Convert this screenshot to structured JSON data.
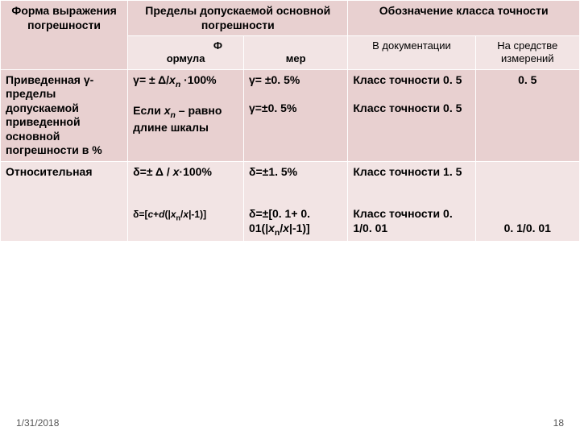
{
  "header": {
    "c1": "Форма выражения погрешности",
    "c2_top": "Пределы допускаемой основной погрешности",
    "c2_a_prefix": "Ф",
    "c2_a": "ормула",
    "c2_b": "мер",
    "c3_top": "Обозначение класса точности",
    "c3_a": "В документации",
    "c3_b": "На средстве измерений"
  },
  "rows": [
    {
      "c1": "Приведенная γ- пределы допускаемой приведенной основной погрешности в %",
      "c2a_line1": "γ= ± Δ/xn ·100%",
      "c2a_note": "Если xn – равно длине шкалы",
      "c2b_1": "γ= ±0. 5%",
      "c2b_2": "γ=±0. 5%",
      "c3a_1": "Класс точности 0. 5",
      "c3a_2": "Класс точности 0. 5",
      "c3b": "0. 5"
    },
    {
      "c1": "Относительная",
      "c2a_line1": "δ=± Δ / x·100%",
      "c2a_note": "δ=[c+d(|xn/x|-1)]",
      "c2b_1": "δ=±1. 5%",
      "c2b_2": "δ=±[0. 1+ 0. 01(|xn/x|-1)]",
      "c3a_1": "Класс точности 1. 5",
      "c3a_2": "Класс точности 0. 1/0. 01",
      "c3b": "0. 1/0. 01"
    }
  ],
  "footer": {
    "date": "1/31/2018",
    "page": "18"
  },
  "colors": {
    "hdr_top": "#e8d0d0",
    "hdr_sub": "#f2e4e4",
    "row_a": "#e8d0d0",
    "row_b": "#f2e4e4",
    "border": "#ffffff"
  }
}
